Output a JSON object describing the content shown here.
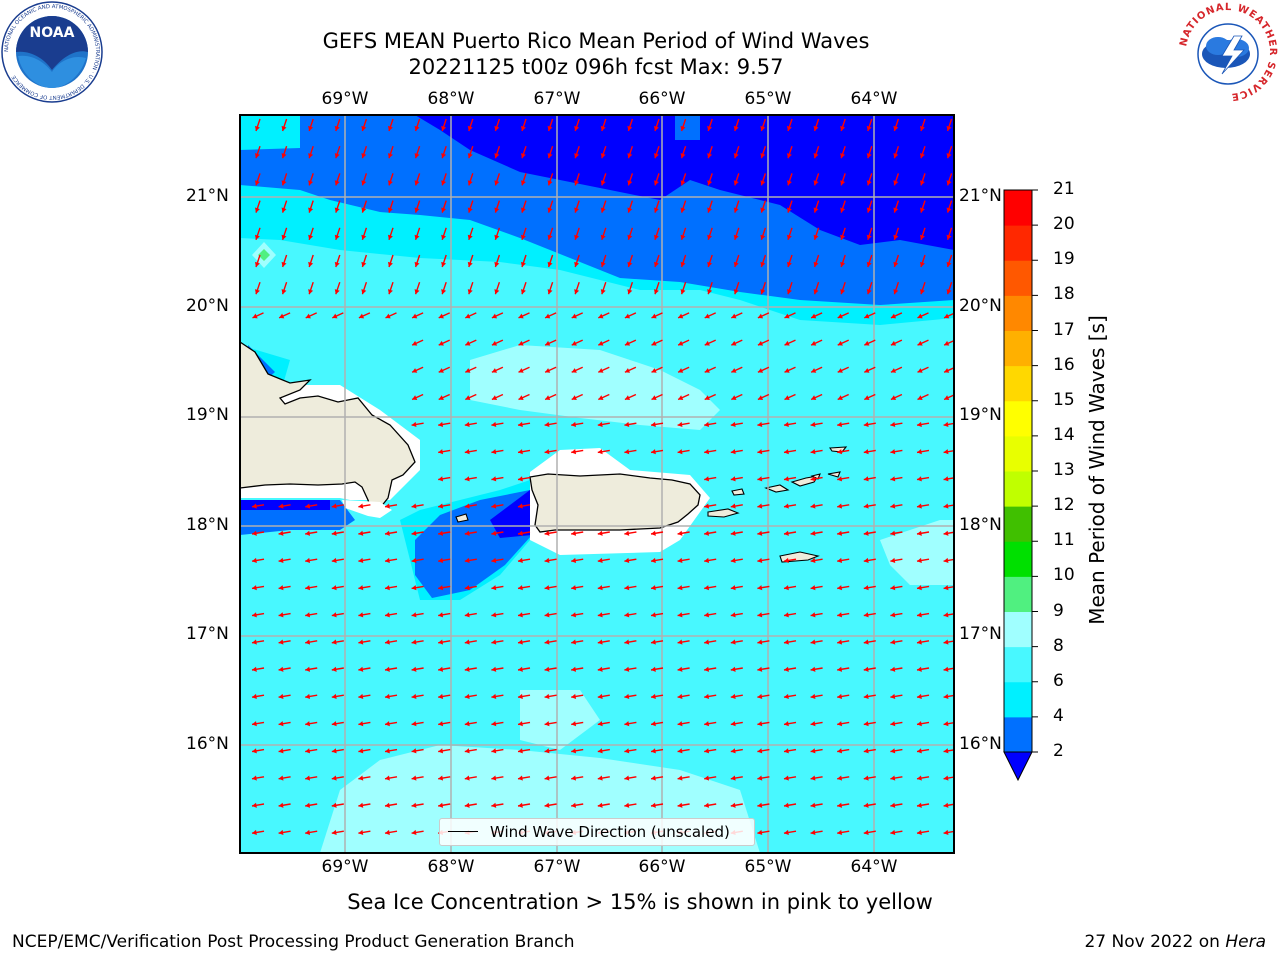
{
  "title": {
    "line1": "GEFS MEAN Puerto Rico Mean Period of Wind Waves",
    "line2": "20221125 t00z 096h fcst   Max: 9.57"
  },
  "map": {
    "lon_labels": [
      "69°W",
      "68°W",
      "67°W",
      "66°W",
      "65°W",
      "64°W"
    ],
    "lat_labels": [
      "21°N",
      "20°N",
      "19°N",
      "18°N",
      "17°N",
      "16°N"
    ],
    "legend": "Wind Wave Direction (unscaled)",
    "arrow_color": "#ff0000",
    "land_color": "#eeecdc",
    "gridline_color": "#b0b0b0"
  },
  "colorbar": {
    "label": "Mean Period of Wind Waves [s]",
    "ticks": [
      "2",
      "4",
      "6",
      "8",
      "9",
      "10",
      "11",
      "12",
      "13",
      "14",
      "15",
      "16",
      "17",
      "18",
      "19",
      "20",
      "21"
    ],
    "colors": [
      "#0000ff",
      "#0070ff",
      "#00f0ff",
      "#48f8ff",
      "#a0ffff",
      "#50f080",
      "#00e000",
      "#40c000",
      "#c0ff00",
      "#e8ff00",
      "#ffff00",
      "#ffd800",
      "#ffb000",
      "#ff8800",
      "#ff5800",
      "#ff2800",
      "#ff0000"
    ]
  },
  "subtitle": "Sea Ice Concentration > 15% is shown in pink to yellow",
  "footer": {
    "left": "NCEP/EMC/Verification Post Processing Product Generation Branch",
    "date": "27 Nov 2022 on",
    "host": "Hera"
  },
  "logos": {
    "noaa_text": "NOAA",
    "noaa_ring": "NATIONAL OCEANIC AND ATMOSPHERIC ADMINISTRATION · U.S. DEPARTMENT OF COMMERCE",
    "nws_ring": "NATIONAL WEATHER SERVICE"
  }
}
